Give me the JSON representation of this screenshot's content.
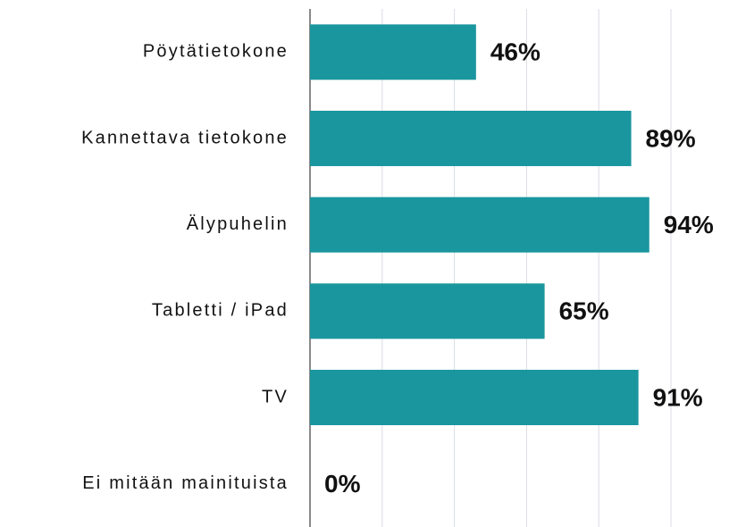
{
  "chart_data": {
    "type": "barh",
    "categories": [
      "Pöytätietokone",
      "Kannettava tietokone",
      "Älypuhelin",
      "Tabletti / iPad",
      "TV",
      "Ei mitään mainituista"
    ],
    "values": [
      46,
      89,
      94,
      65,
      91,
      0
    ],
    "value_labels": [
      "46%",
      "89%",
      "94%",
      "65%",
      "91%",
      "0%"
    ],
    "color": "#1a969f",
    "xlim": [
      0,
      100
    ],
    "xticks": [
      0,
      20,
      40,
      60,
      80,
      100
    ],
    "grid": true
  }
}
